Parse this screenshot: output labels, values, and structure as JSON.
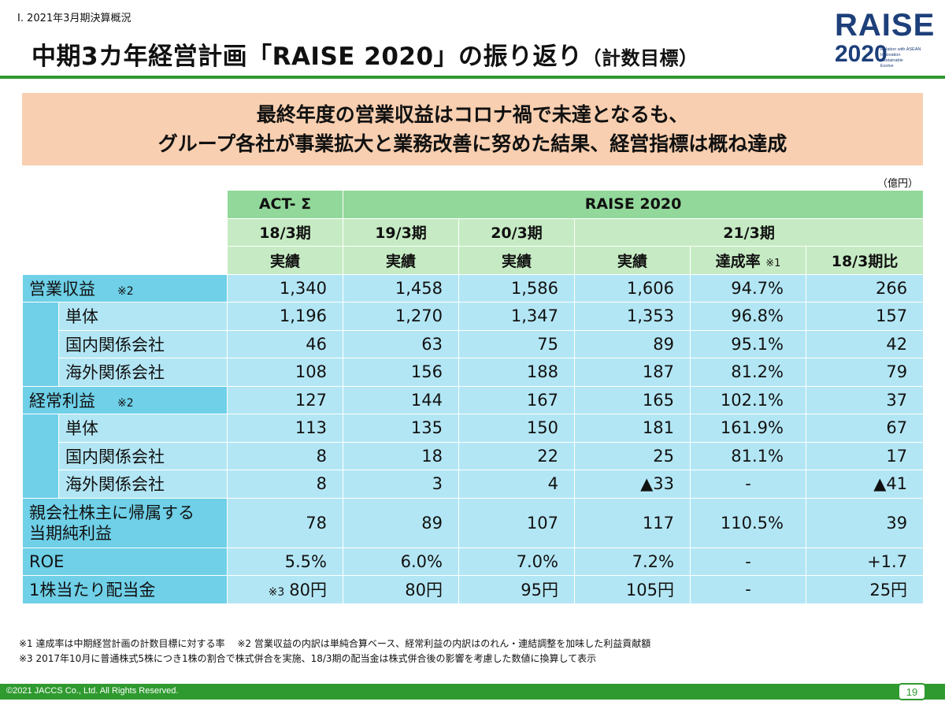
{
  "header": {
    "section": "Ⅰ. 2021年3月期決算概況",
    "title_main": "中期3カ年経営計画「RAISE 2020」の振り返り",
    "title_sub": "（計数目標）",
    "logo": {
      "text": "RAISE",
      "year": "2020",
      "tagline": [
        "Relation with ASEAN",
        "Innovation",
        "Sustainable",
        "Evolve"
      ]
    },
    "accent_color": "#2f9a2f"
  },
  "banner": {
    "line1": "最終年度の営業収益はコロナ禍で未達となるも、",
    "line2": "グループ各社が事業拡大と業務改善に努めた結果、経営指標は概ね達成"
  },
  "unit": "（億円）",
  "table": {
    "group_act": "ACT- Σ",
    "group_raise": "RAISE 2020",
    "periods": {
      "p18": "18/3期",
      "p19": "19/3期",
      "p20": "20/3期",
      "p21": "21/3期"
    },
    "cols": {
      "c1": "実績",
      "c2": "実績",
      "c3": "実績",
      "c4": "実績",
      "c5": "達成率",
      "c5_note": "※1",
      "c6": "18/3期比"
    },
    "rows": [
      {
        "label": "営業収益",
        "note": "※2",
        "values": [
          "1,340",
          "1,458",
          "1,586",
          "1,606",
          "94.7%",
          "266"
        ]
      },
      {
        "label": "単体",
        "values": [
          "1,196",
          "1,270",
          "1,347",
          "1,353",
          "96.8%",
          "157"
        ]
      },
      {
        "label": "国内関係会社",
        "values": [
          "46",
          "63",
          "75",
          "89",
          "95.1%",
          "42"
        ]
      },
      {
        "label": "海外関係会社",
        "values": [
          "108",
          "156",
          "188",
          "187",
          "81.2%",
          "79"
        ]
      },
      {
        "label": "経常利益",
        "note": "※2",
        "values": [
          "127",
          "144",
          "167",
          "165",
          "102.1%",
          "37"
        ]
      },
      {
        "label": "単体",
        "values": [
          "113",
          "135",
          "150",
          "181",
          "161.9%",
          "67"
        ]
      },
      {
        "label": "国内関係会社",
        "values": [
          "8",
          "18",
          "22",
          "25",
          "81.1%",
          "17"
        ]
      },
      {
        "label": "海外関係会社",
        "values": [
          "8",
          "3",
          "4",
          "▲33",
          "-",
          "▲41"
        ]
      },
      {
        "label_line1": "親会社株主に帰属する",
        "label_line2": "当期純利益",
        "values": [
          "78",
          "89",
          "107",
          "117",
          "110.5%",
          "39"
        ]
      },
      {
        "label": "ROE",
        "values": [
          "5.5%",
          "6.0%",
          "7.0%",
          "7.2%",
          "-",
          "+1.7"
        ]
      },
      {
        "label": "1株当たり配当金",
        "prefix": "※3",
        "values": [
          "80円",
          "80円",
          "95円",
          "105円",
          "-",
          "25円"
        ]
      }
    ]
  },
  "footnotes": {
    "line1": "※1 達成率は中期経営計画の計数目標に対する率　 ※2 営業収益の内訳は単純合算ベース、経常利益の内訳はのれん・連結調整を加味した利益貢献額",
    "line2": "※3 2017年10月に普通株式5株につき1株の割合で株式併合を実施、18/3期の配当金は株式併合後の影響を考慮した数値に換算して表示"
  },
  "footer": {
    "copyright": "©2021 JACCS Co., Ltd. All Rights Reserved.",
    "page": "19"
  }
}
